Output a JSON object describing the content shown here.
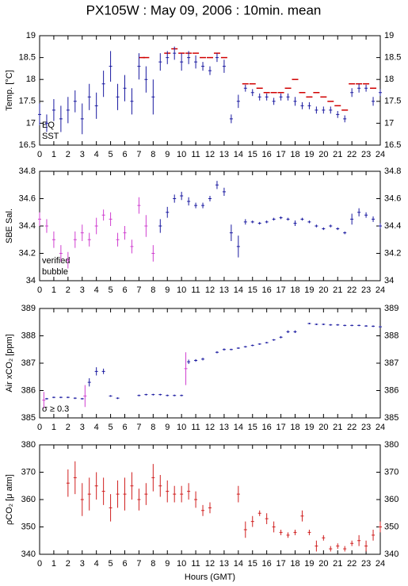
{
  "title": "PX105W : May 09, 2006 : 10min. mean",
  "x_label": "Hours (GMT)",
  "chart_data": [
    {
      "type": "errorbar",
      "y_label": "Temp. [°C]",
      "xlim": [
        0,
        24
      ],
      "xticks": [
        0,
        1,
        2,
        3,
        4,
        5,
        6,
        7,
        8,
        9,
        10,
        11,
        12,
        13,
        14,
        15,
        16,
        17,
        18,
        19,
        20,
        21,
        22,
        23,
        24
      ],
      "ylim": [
        16.5,
        19
      ],
      "yticks": [
        16.5,
        17,
        17.5,
        18,
        18.5,
        19
      ],
      "series": [
        {
          "name": "EQ",
          "color": "#d00000",
          "marker": "dash",
          "x": [
            7.2,
            7.5,
            9,
            9.5,
            10,
            10.5,
            11,
            11.5,
            12,
            12.5,
            13,
            14.5,
            15,
            15.5,
            16,
            16.5,
            17,
            17.5,
            18,
            18.5,
            19,
            19.5,
            20,
            20.5,
            21,
            21.5,
            22,
            22.5,
            23,
            23.5
          ],
          "values": [
            18.5,
            18.5,
            18.6,
            18.7,
            18.6,
            18.6,
            18.6,
            18.5,
            18.5,
            18.6,
            18.5,
            17.9,
            17.9,
            17.8,
            17.7,
            17.7,
            17.7,
            17.8,
            18.0,
            17.7,
            17.6,
            17.7,
            17.6,
            17.5,
            17.4,
            17.3,
            17.9,
            17.9,
            17.9,
            17.8
          ]
        },
        {
          "name": "SST",
          "color": "#1a1aa0",
          "x": [
            0,
            0.5,
            1,
            1.5,
            2,
            2.5,
            3,
            3.5,
            4,
            4.5,
            5,
            5.5,
            6,
            6.5,
            7,
            7.5,
            8,
            8.5,
            9,
            9.5,
            10,
            10.5,
            11,
            11.5,
            12,
            12.5,
            13,
            13.5,
            14,
            14.5,
            15,
            15.5,
            16,
            16.5,
            17,
            17.5,
            18,
            18.5,
            19,
            19.5,
            20,
            20.5,
            21,
            21.5,
            22,
            22.5,
            23,
            23.5,
            24
          ],
          "values": [
            17.2,
            17.0,
            17.3,
            17.1,
            17.3,
            17.5,
            17.1,
            17.6,
            17.4,
            17.9,
            18.3,
            17.6,
            17.8,
            17.5,
            18.3,
            18.0,
            17.6,
            18.4,
            18.5,
            18.6,
            18.4,
            18.5,
            18.4,
            18.3,
            18.2,
            18.5,
            18.3,
            17.1,
            17.5,
            17.8,
            17.7,
            17.6,
            17.6,
            17.5,
            17.6,
            17.6,
            17.5,
            17.4,
            17.4,
            17.3,
            17.3,
            17.3,
            17.2,
            17.1,
            17.7,
            17.8,
            17.8,
            17.5,
            17.7
          ],
          "errors": [
            0.25,
            0.2,
            0.25,
            0.3,
            0.3,
            0.25,
            0.35,
            0.3,
            0.3,
            0.3,
            0.35,
            0.3,
            0.3,
            0.3,
            0.3,
            0.3,
            0.4,
            0.2,
            0.15,
            0.15,
            0.2,
            0.15,
            0.15,
            0.1,
            0.1,
            0.1,
            0.15,
            0.1,
            0.15,
            0.08,
            0.08,
            0.08,
            0.08,
            0.08,
            0.08,
            0.08,
            0.1,
            0.08,
            0.08,
            0.08,
            0.08,
            0.08,
            0.08,
            0.08,
            0.1,
            0.1,
            0.08,
            0.1,
            0.08
          ]
        }
      ]
    },
    {
      "type": "errorbar",
      "y_label": "SBE Sal.",
      "xlim": [
        0,
        24
      ],
      "xticks": [
        0,
        1,
        2,
        3,
        4,
        5,
        6,
        7,
        8,
        9,
        10,
        11,
        12,
        13,
        14,
        15,
        16,
        17,
        18,
        19,
        20,
        21,
        22,
        23,
        24
      ],
      "ylim": [
        34,
        34.8
      ],
      "yticks": [
        34,
        34.2,
        34.4,
        34.6,
        34.8
      ],
      "series": [
        {
          "name": "verified",
          "color": "#1a1aa0",
          "x": [
            8.5,
            9,
            9.5,
            10,
            10.5,
            11,
            11.5,
            12,
            12.5,
            13,
            13.5,
            14,
            14.5,
            15,
            15.5,
            16,
            16.5,
            17,
            17.5,
            18,
            18.5,
            19,
            19.5,
            20,
            20.5,
            21,
            21.5,
            22,
            22.5,
            23,
            23.5,
            24
          ],
          "values": [
            34.4,
            34.5,
            34.6,
            34.62,
            34.58,
            34.55,
            34.55,
            34.6,
            34.7,
            34.65,
            34.35,
            34.25,
            34.43,
            34.43,
            34.42,
            34.43,
            34.45,
            34.46,
            34.45,
            34.42,
            34.45,
            34.43,
            34.4,
            34.38,
            34.4,
            34.38,
            34.35,
            34.45,
            34.5,
            34.48,
            34.45,
            34.4
          ],
          "errors": [
            0.05,
            0.04,
            0.03,
            0.03,
            0.03,
            0.02,
            0.02,
            0.02,
            0.03,
            0.03,
            0.06,
            0.08,
            0.02,
            0.01,
            0.01,
            0.01,
            0.01,
            0.01,
            0.01,
            0.02,
            0.01,
            0.01,
            0.01,
            0.01,
            0.01,
            0.01,
            0.01,
            0.04,
            0.03,
            0.02,
            0.02,
            0.02
          ]
        },
        {
          "name": "bubble",
          "color": "#d040d0",
          "x": [
            0,
            0.5,
            1,
            1.5,
            2,
            2.5,
            3,
            3.5,
            4,
            4.5,
            5,
            5.5,
            6,
            6.5,
            7,
            7.5,
            8
          ],
          "values": [
            34.45,
            34.4,
            34.3,
            34.2,
            34.15,
            34.3,
            34.35,
            34.3,
            34.4,
            34.48,
            34.45,
            34.3,
            34.35,
            34.25,
            34.55,
            34.4,
            34.2
          ],
          "errors": [
            0.05,
            0.05,
            0.06,
            0.06,
            0.06,
            0.06,
            0.06,
            0.05,
            0.06,
            0.04,
            0.05,
            0.05,
            0.05,
            0.05,
            0.06,
            0.08,
            0.06
          ]
        }
      ]
    },
    {
      "type": "errorbar",
      "y_label": "Air xCO₂ [ppm]",
      "xlim": [
        0,
        24
      ],
      "xticks": [
        0,
        1,
        2,
        3,
        4,
        5,
        6,
        7,
        8,
        9,
        10,
        11,
        12,
        13,
        14,
        15,
        16,
        17,
        18,
        19,
        20,
        21,
        22,
        23,
        24
      ],
      "ylim": [
        385,
        389
      ],
      "yticks": [
        385,
        386,
        387,
        388,
        389
      ],
      "series": [
        {
          "color": "#1a1aa0",
          "x": [
            0.5,
            1,
            1.5,
            2,
            2.5,
            3,
            3.5,
            4,
            4.5,
            5,
            5.5,
            7,
            7.5,
            8,
            8.5,
            9,
            9.5,
            10,
            10.5,
            11,
            11.5,
            12.5,
            13,
            13.5,
            14,
            14.5,
            15,
            15.5,
            16,
            16.5,
            17,
            17.5,
            18,
            19,
            19.5,
            20,
            20.5,
            21,
            21.5,
            22,
            22.5,
            23,
            23.5,
            24
          ],
          "values": [
            385.7,
            385.75,
            385.75,
            385.75,
            385.72,
            385.7,
            386.3,
            386.7,
            386.7,
            385.8,
            385.72,
            385.82,
            385.85,
            385.85,
            385.85,
            385.82,
            385.82,
            385.82,
            387.05,
            387.1,
            387.15,
            387.4,
            387.5,
            387.5,
            387.55,
            387.6,
            387.65,
            387.7,
            387.75,
            387.85,
            387.95,
            388.15,
            388.15,
            388.45,
            388.42,
            388.42,
            388.4,
            388.4,
            388.38,
            388.38,
            388.38,
            388.36,
            388.35,
            388.33
          ],
          "errors": [
            0.03,
            0.03,
            0.03,
            0.03,
            0.03,
            0.03,
            0.15,
            0.15,
            0.1,
            0.03,
            0.03,
            0.03,
            0.03,
            0.03,
            0.03,
            0.03,
            0.03,
            0.03,
            0.08,
            0.05,
            0.05,
            0.04,
            0.04,
            0.03,
            0.03,
            0.03,
            0.03,
            0.03,
            0.03,
            0.03,
            0.04,
            0.05,
            0.05,
            0.03,
            0.03,
            0.03,
            0.03,
            0.03,
            0.03,
            0.03,
            0.03,
            0.03,
            0.03,
            0.03
          ]
        },
        {
          "name": "σ ≥ 0.3",
          "color": "#d040d0",
          "x": [
            0.3,
            3.2,
            10.3
          ],
          "values": [
            385.65,
            385.8,
            386.8
          ],
          "errors": [
            0.3,
            0.4,
            0.6
          ]
        }
      ]
    },
    {
      "type": "errorbar",
      "y_label": "ρCO₂ [μ atm]",
      "xlim": [
        0,
        24
      ],
      "xticks": [
        0,
        1,
        2,
        3,
        4,
        5,
        6,
        7,
        8,
        9,
        10,
        11,
        12,
        13,
        14,
        15,
        16,
        17,
        18,
        19,
        20,
        21,
        22,
        23,
        24
      ],
      "ylim": [
        340,
        380
      ],
      "yticks": [
        340,
        350,
        360,
        370,
        380
      ],
      "series": [
        {
          "color": "#d02020",
          "x": [
            2,
            2.5,
            3,
            3.5,
            4,
            4.5,
            5,
            5.5,
            6,
            6.5,
            7,
            7.5,
            8,
            8.5,
            9,
            9.5,
            10,
            10.5,
            11,
            11.5,
            12,
            14,
            14.5,
            15,
            15.5,
            16,
            16.5,
            17,
            17.5,
            18,
            18.5,
            19,
            19.5,
            20,
            20.5,
            21,
            21.5,
            22,
            22.5,
            23,
            23.5,
            24
          ],
          "values": [
            366,
            368,
            360,
            362,
            365,
            363,
            357,
            362,
            362,
            365,
            360,
            362,
            368,
            365,
            363,
            362,
            362,
            363,
            360,
            356,
            357,
            362,
            349,
            352,
            355,
            353,
            350,
            348,
            347,
            348,
            354,
            348,
            343,
            346,
            342,
            343,
            342,
            344,
            345,
            343,
            347,
            350
          ],
          "errors": [
            5,
            6,
            6,
            6,
            5,
            5,
            5,
            5,
            6,
            5,
            4,
            4,
            5,
            4,
            4,
            3,
            3,
            3,
            3,
            2,
            2,
            3,
            3,
            2,
            1,
            2,
            2,
            1,
            1,
            1,
            2,
            1,
            2,
            1,
            1,
            1,
            1,
            1,
            2,
            2,
            2,
            2
          ]
        }
      ]
    }
  ]
}
